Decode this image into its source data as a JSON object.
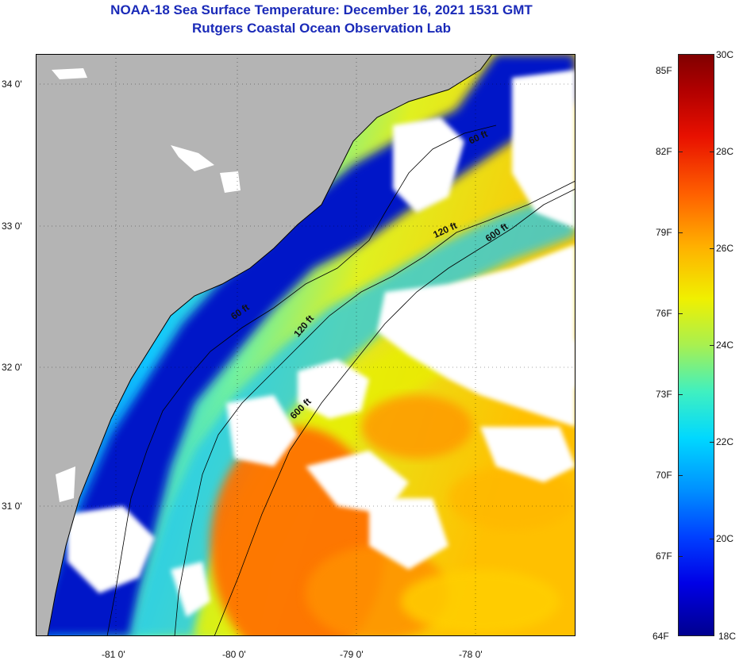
{
  "header": {
    "title": "NOAA-18 Sea Surface Temperature:  December 16, 2021 1531 GMT",
    "subtitle": "Rutgers Coastal Ocean Observation Lab"
  },
  "map": {
    "lon_labels": [
      "-81 0'",
      "-80 0'",
      "-79 0'",
      "-78 0'"
    ],
    "lat_labels": [
      "34 0'",
      "33 0'",
      "32 0'",
      "31 0'"
    ],
    "isobath_labels": [
      "60 ft",
      "120 ft",
      "600 ft",
      "60 ft",
      "120 ft",
      "600 ft"
    ],
    "colors": {
      "land": "#b4b4b4",
      "cloud": "#ffffff",
      "cold": "#0010b0",
      "warm": "#ff7000"
    }
  },
  "colorbar": {
    "fahrenheit_labels": [
      "85F",
      "82F",
      "79F",
      "76F",
      "73F",
      "70F",
      "67F",
      "64F"
    ],
    "celsius_labels": [
      "30C",
      "28C",
      "26C",
      "24C",
      "22C",
      "20C",
      "18C"
    ]
  }
}
